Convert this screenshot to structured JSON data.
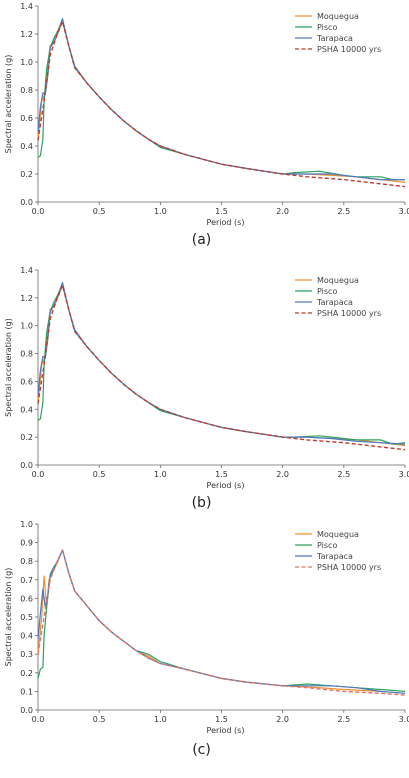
{
  "chart_data": [
    {
      "type": "line",
      "panel_label": "(a)",
      "xlabel": "Period (s)",
      "ylabel": "Spectral acceleration (g)",
      "xlim": [
        0,
        3
      ],
      "ylim": [
        0,
        1.4
      ],
      "xticks": [
        "0.0",
        "0.5",
        "1.0",
        "1.5",
        "2.0",
        "2.5",
        "3.0"
      ],
      "yticks": [
        "0.0",
        "0.2",
        "0.4",
        "0.6",
        "0.8",
        "1.0",
        "1.2",
        "1.4"
      ],
      "grid": false,
      "legend": "top-right",
      "series": [
        {
          "name": "Moquegua",
          "color": "#f28e2b",
          "dash": false,
          "x": [
            0.0,
            0.03,
            0.06,
            0.08,
            0.1,
            0.13,
            0.16,
            0.2,
            0.25,
            0.3,
            0.4,
            0.5,
            0.6,
            0.7,
            0.8,
            0.9,
            1.0,
            1.2,
            1.5,
            1.7,
            2.0,
            2.2,
            2.4,
            2.6,
            2.8,
            3.0
          ],
          "y": [
            0.45,
            0.72,
            0.78,
            0.98,
            1.12,
            1.14,
            1.2,
            1.29,
            1.12,
            0.97,
            0.85,
            0.75,
            0.66,
            0.58,
            0.51,
            0.45,
            0.4,
            0.34,
            0.27,
            0.24,
            0.2,
            0.2,
            0.19,
            0.18,
            0.16,
            0.14
          ]
        },
        {
          "name": "Pisco",
          "color": "#2ca25f",
          "dash": false,
          "x": [
            0.0,
            0.02,
            0.04,
            0.05,
            0.07,
            0.1,
            0.13,
            0.16,
            0.2,
            0.25,
            0.3,
            0.4,
            0.5,
            0.6,
            0.7,
            0.8,
            0.9,
            1.0,
            1.2,
            1.5,
            1.7,
            2.0,
            2.1,
            2.3,
            2.5,
            2.6,
            2.8,
            2.9,
            3.0
          ],
          "y": [
            0.32,
            0.33,
            0.45,
            0.72,
            0.95,
            1.1,
            1.17,
            1.22,
            1.3,
            1.12,
            0.96,
            0.85,
            0.75,
            0.66,
            0.58,
            0.51,
            0.45,
            0.39,
            0.34,
            0.27,
            0.24,
            0.2,
            0.21,
            0.22,
            0.19,
            0.18,
            0.18,
            0.16,
            0.16
          ]
        },
        {
          "name": "Tarapaca",
          "color": "#4e79c4",
          "dash": false,
          "x": [
            0.0,
            0.02,
            0.04,
            0.06,
            0.08,
            0.1,
            0.12,
            0.15,
            0.2,
            0.25,
            0.3,
            0.4,
            0.5,
            0.6,
            0.7,
            0.8,
            0.9,
            1.0,
            1.2,
            1.5,
            1.7,
            2.0,
            2.2,
            2.4,
            2.6,
            2.8,
            3.0
          ],
          "y": [
            0.5,
            0.68,
            0.78,
            0.77,
            0.9,
            1.1,
            1.13,
            1.18,
            1.31,
            1.12,
            0.97,
            0.85,
            0.75,
            0.66,
            0.58,
            0.51,
            0.45,
            0.4,
            0.34,
            0.27,
            0.24,
            0.2,
            0.2,
            0.2,
            0.18,
            0.16,
            0.16
          ]
        },
        {
          "name": "PSHA 10000 yrs",
          "color": "#c0392b",
          "dash": true,
          "x": [
            0.0,
            0.05,
            0.1,
            0.15,
            0.2,
            0.25,
            0.3,
            0.4,
            0.5,
            0.6,
            0.7,
            0.8,
            0.9,
            1.0,
            1.2,
            1.5,
            1.7,
            2.0,
            2.2,
            2.5,
            2.8,
            3.0
          ],
          "y": [
            0.44,
            0.72,
            1.05,
            1.18,
            1.29,
            1.12,
            0.96,
            0.85,
            0.75,
            0.66,
            0.58,
            0.51,
            0.45,
            0.4,
            0.34,
            0.27,
            0.24,
            0.2,
            0.18,
            0.16,
            0.13,
            0.11
          ]
        }
      ]
    },
    {
      "type": "line",
      "panel_label": "(b)",
      "xlabel": "Period (s)",
      "ylabel": "Spectral acceleration (g)",
      "xlim": [
        0,
        3
      ],
      "ylim": [
        0,
        1.4
      ],
      "xticks": [
        "0.0",
        "0.5",
        "1.0",
        "1.5",
        "2.0",
        "2.5",
        "3.0"
      ],
      "yticks": [
        "0.0",
        "0.2",
        "0.4",
        "0.6",
        "0.8",
        "1.0",
        "1.2",
        "1.4"
      ],
      "grid": false,
      "legend": "top-right",
      "series": [
        {
          "name": "Moquegua",
          "color": "#f28e2b",
          "dash": false,
          "x": [
            0.0,
            0.03,
            0.06,
            0.08,
            0.1,
            0.13,
            0.16,
            0.2,
            0.25,
            0.3,
            0.4,
            0.5,
            0.6,
            0.7,
            0.8,
            0.9,
            1.0,
            1.2,
            1.5,
            1.7,
            2.0,
            2.2,
            2.4,
            2.6,
            2.8,
            3.0
          ],
          "y": [
            0.45,
            0.72,
            0.78,
            0.98,
            1.12,
            1.14,
            1.2,
            1.29,
            1.12,
            0.97,
            0.85,
            0.75,
            0.66,
            0.58,
            0.51,
            0.45,
            0.4,
            0.34,
            0.27,
            0.24,
            0.2,
            0.2,
            0.19,
            0.18,
            0.16,
            0.14
          ]
        },
        {
          "name": "Pisco",
          "color": "#2ca25f",
          "dash": false,
          "x": [
            0.0,
            0.02,
            0.04,
            0.05,
            0.07,
            0.1,
            0.13,
            0.16,
            0.2,
            0.25,
            0.3,
            0.4,
            0.5,
            0.6,
            0.7,
            0.8,
            0.9,
            1.0,
            1.2,
            1.5,
            1.7,
            2.0,
            2.1,
            2.3,
            2.5,
            2.6,
            2.8,
            2.9,
            3.0
          ],
          "y": [
            0.32,
            0.33,
            0.45,
            0.72,
            0.95,
            1.1,
            1.17,
            1.22,
            1.3,
            1.12,
            0.96,
            0.85,
            0.75,
            0.66,
            0.58,
            0.51,
            0.45,
            0.39,
            0.34,
            0.27,
            0.24,
            0.2,
            0.2,
            0.21,
            0.19,
            0.18,
            0.18,
            0.15,
            0.16
          ]
        },
        {
          "name": "Tarapaca",
          "color": "#4e79c4",
          "dash": false,
          "x": [
            0.0,
            0.02,
            0.04,
            0.06,
            0.08,
            0.1,
            0.12,
            0.15,
            0.2,
            0.25,
            0.3,
            0.4,
            0.5,
            0.6,
            0.7,
            0.8,
            0.9,
            1.0,
            1.2,
            1.5,
            1.7,
            2.0,
            2.2,
            2.4,
            2.6,
            2.8,
            3.0
          ],
          "y": [
            0.5,
            0.68,
            0.78,
            0.77,
            0.9,
            1.1,
            1.13,
            1.18,
            1.31,
            1.12,
            0.97,
            0.85,
            0.75,
            0.66,
            0.58,
            0.51,
            0.45,
            0.4,
            0.34,
            0.27,
            0.24,
            0.2,
            0.2,
            0.19,
            0.17,
            0.16,
            0.15
          ]
        },
        {
          "name": "PSHA 10000 yrs",
          "color": "#c0392b",
          "dash": true,
          "x": [
            0.0,
            0.05,
            0.1,
            0.15,
            0.2,
            0.25,
            0.3,
            0.4,
            0.5,
            0.6,
            0.7,
            0.8,
            0.9,
            1.0,
            1.2,
            1.5,
            1.7,
            2.0,
            2.2,
            2.5,
            2.8,
            3.0
          ],
          "y": [
            0.44,
            0.72,
            1.05,
            1.18,
            1.29,
            1.12,
            0.96,
            0.85,
            0.75,
            0.66,
            0.58,
            0.51,
            0.45,
            0.4,
            0.34,
            0.27,
            0.24,
            0.2,
            0.18,
            0.16,
            0.13,
            0.11
          ]
        }
      ]
    },
    {
      "type": "line",
      "panel_label": "(c)",
      "xlabel": "Period (s)",
      "ylabel": "Spectral acceleration (g)",
      "xlim": [
        0,
        3
      ],
      "ylim": [
        0,
        1.0
      ],
      "xticks": [
        "0.0",
        "0.5",
        "1.0",
        "1.5",
        "2.0",
        "2.5",
        "3.0"
      ],
      "yticks": [
        "0.0",
        "0.1",
        "0.2",
        "0.3",
        "0.4",
        "0.5",
        "0.6",
        "0.7",
        "0.8",
        "0.9",
        "1.0"
      ],
      "grid": false,
      "legend": "top-right",
      "series": [
        {
          "name": "Moquegua",
          "color": "#f28e2b",
          "dash": false,
          "x": [
            0.0,
            0.03,
            0.05,
            0.07,
            0.09,
            0.12,
            0.15,
            0.2,
            0.25,
            0.3,
            0.4,
            0.5,
            0.6,
            0.7,
            0.8,
            0.9,
            1.0,
            1.2,
            1.5,
            1.7,
            2.0,
            2.3,
            2.5,
            2.8,
            3.0
          ],
          "y": [
            0.3,
            0.5,
            0.72,
            0.55,
            0.7,
            0.74,
            0.78,
            0.86,
            0.74,
            0.64,
            0.56,
            0.48,
            0.42,
            0.37,
            0.32,
            0.29,
            0.25,
            0.22,
            0.17,
            0.15,
            0.13,
            0.12,
            0.11,
            0.1,
            0.09
          ]
        },
        {
          "name": "Pisco",
          "color": "#2ca25f",
          "dash": false,
          "x": [
            0.0,
            0.02,
            0.04,
            0.05,
            0.07,
            0.1,
            0.13,
            0.16,
            0.2,
            0.25,
            0.3,
            0.4,
            0.5,
            0.6,
            0.7,
            0.8,
            0.9,
            1.0,
            1.2,
            1.5,
            1.7,
            2.0,
            2.2,
            2.4,
            2.6,
            2.8,
            3.0
          ],
          "y": [
            0.17,
            0.22,
            0.23,
            0.4,
            0.55,
            0.72,
            0.76,
            0.8,
            0.86,
            0.74,
            0.64,
            0.56,
            0.48,
            0.42,
            0.37,
            0.32,
            0.3,
            0.26,
            0.22,
            0.17,
            0.15,
            0.13,
            0.14,
            0.13,
            0.12,
            0.11,
            0.1
          ]
        },
        {
          "name": "Tarapaca",
          "color": "#4e79c4",
          "dash": false,
          "x": [
            0.0,
            0.02,
            0.04,
            0.06,
            0.08,
            0.1,
            0.13,
            0.16,
            0.2,
            0.25,
            0.3,
            0.4,
            0.5,
            0.6,
            0.7,
            0.8,
            0.9,
            1.0,
            1.2,
            1.5,
            1.7,
            2.0,
            2.2,
            2.4,
            2.6,
            2.8,
            3.0
          ],
          "y": [
            0.38,
            0.52,
            0.65,
            0.55,
            0.62,
            0.73,
            0.77,
            0.8,
            0.86,
            0.74,
            0.64,
            0.56,
            0.48,
            0.42,
            0.37,
            0.32,
            0.28,
            0.25,
            0.22,
            0.17,
            0.15,
            0.13,
            0.13,
            0.13,
            0.12,
            0.1,
            0.09
          ]
        },
        {
          "name": "PSHA 10000 yrs",
          "color": "#e6736b",
          "dash": true,
          "x": [
            0.0,
            0.05,
            0.1,
            0.15,
            0.2,
            0.25,
            0.3,
            0.4,
            0.5,
            0.6,
            0.7,
            0.8,
            0.9,
            1.0,
            1.2,
            1.5,
            1.7,
            2.0,
            2.2,
            2.5,
            2.8,
            3.0
          ],
          "y": [
            0.3,
            0.5,
            0.7,
            0.79,
            0.86,
            0.74,
            0.64,
            0.56,
            0.48,
            0.42,
            0.37,
            0.32,
            0.28,
            0.25,
            0.22,
            0.17,
            0.15,
            0.13,
            0.12,
            0.1,
            0.09,
            0.08
          ]
        }
      ]
    }
  ]
}
